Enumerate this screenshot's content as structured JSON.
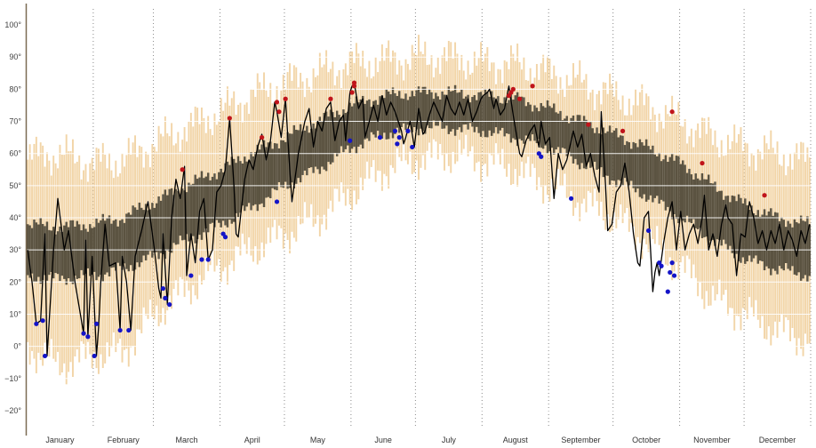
{
  "chart_data": {
    "type": "line",
    "title": "",
    "xlabel": "",
    "ylabel": "",
    "ylim": [
      -25,
      105
    ],
    "y_ticks": [
      -20,
      -10,
      0,
      10,
      20,
      30,
      40,
      50,
      60,
      70,
      80,
      90,
      100
    ],
    "y_tick_labels": [
      "−20°",
      "−10°",
      "0°",
      "10°",
      "20°",
      "30°",
      "40°",
      "50°",
      "60°",
      "70°",
      "80°",
      "90°",
      "100°"
    ],
    "months": [
      "January",
      "February",
      "March",
      "April",
      "May",
      "June",
      "July",
      "August",
      "September",
      "October",
      "November",
      "December"
    ],
    "month_start_days": [
      1,
      32,
      60,
      91,
      121,
      152,
      182,
      213,
      244,
      274,
      305,
      335
    ],
    "days_in_year": 365,
    "grid": "horizontal white lines at each 10°; dotted vertical lines at month boundaries",
    "colors": {
      "record_range": "#f2d5a8",
      "normal_range": "#5b5341",
      "actual_line": "#000000",
      "record_high_marker": "#c0141b",
      "record_low_marker": "#1414c8",
      "axis": "#7a6a52",
      "month_divider": "#888888"
    },
    "series": [
      {
        "key": "record_range",
        "kind": "band",
        "anchors": [
          [
            1,
            0,
            59
          ],
          [
            15,
            -6,
            60
          ],
          [
            31,
            -3,
            57
          ],
          [
            45,
            -2,
            58
          ],
          [
            60,
            10,
            63
          ],
          [
            75,
            18,
            68
          ],
          [
            91,
            25,
            73
          ],
          [
            105,
            30,
            78
          ],
          [
            121,
            35,
            82
          ],
          [
            136,
            40,
            85
          ],
          [
            152,
            48,
            88
          ],
          [
            167,
            55,
            89
          ],
          [
            182,
            58,
            90
          ],
          [
            197,
            60,
            90
          ],
          [
            213,
            58,
            88
          ],
          [
            228,
            55,
            88
          ],
          [
            244,
            50,
            85
          ],
          [
            259,
            45,
            82
          ],
          [
            274,
            40,
            78
          ],
          [
            289,
            33,
            75
          ],
          [
            305,
            25,
            70
          ],
          [
            320,
            15,
            65
          ],
          [
            335,
            10,
            62
          ],
          [
            350,
            5,
            60
          ],
          [
            365,
            2,
            58
          ]
        ]
      },
      {
        "key": "normal_range",
        "kind": "band",
        "anchors": [
          [
            1,
            22,
            38
          ],
          [
            15,
            21,
            37
          ],
          [
            31,
            22,
            38
          ],
          [
            45,
            24,
            40
          ],
          [
            60,
            28,
            45
          ],
          [
            75,
            33,
            50
          ],
          [
            91,
            38,
            55
          ],
          [
            105,
            43,
            60
          ],
          [
            121,
            50,
            65
          ],
          [
            136,
            55,
            70
          ],
          [
            152,
            62,
            75
          ],
          [
            167,
            66,
            78
          ],
          [
            182,
            68,
            79
          ],
          [
            197,
            68,
            79
          ],
          [
            213,
            67,
            78
          ],
          [
            228,
            65,
            77
          ],
          [
            244,
            62,
            74
          ],
          [
            259,
            57,
            70
          ],
          [
            274,
            52,
            66
          ],
          [
            289,
            47,
            62
          ],
          [
            305,
            40,
            57
          ],
          [
            320,
            33,
            50
          ],
          [
            335,
            27,
            44
          ],
          [
            350,
            24,
            40
          ],
          [
            365,
            22,
            38
          ]
        ]
      },
      {
        "key": "actual",
        "kind": "line",
        "anchors": [
          [
            1,
            30
          ],
          [
            3,
            20
          ],
          [
            5,
            7
          ],
          [
            7,
            8
          ],
          [
            9,
            35
          ],
          [
            10,
            -3
          ],
          [
            13,
            30
          ],
          [
            15,
            46
          ],
          [
            18,
            30
          ],
          [
            20,
            36
          ],
          [
            23,
            20
          ],
          [
            25,
            12
          ],
          [
            27,
            4
          ],
          [
            28,
            33
          ],
          [
            29,
            3
          ],
          [
            31,
            28
          ],
          [
            33,
            -3
          ],
          [
            34,
            6
          ],
          [
            35,
            20
          ],
          [
            37,
            38
          ],
          [
            39,
            25
          ],
          [
            42,
            26
          ],
          [
            44,
            5
          ],
          [
            45,
            28
          ],
          [
            47,
            20
          ],
          [
            49,
            5
          ],
          [
            51,
            28
          ],
          [
            54,
            36
          ],
          [
            57,
            45
          ],
          [
            60,
            30
          ],
          [
            62,
            18
          ],
          [
            63,
            15
          ],
          [
            64,
            35
          ],
          [
            66,
            13
          ],
          [
            68,
            40
          ],
          [
            70,
            52
          ],
          [
            72,
            46
          ],
          [
            74,
            56
          ],
          [
            75,
            22
          ],
          [
            77,
            35
          ],
          [
            79,
            26
          ],
          [
            81,
            42
          ],
          [
            83,
            46
          ],
          [
            85,
            27
          ],
          [
            87,
            30
          ],
          [
            89,
            48
          ],
          [
            91,
            50
          ],
          [
            93,
            55
          ],
          [
            95,
            71
          ],
          [
            97,
            50
          ],
          [
            98,
            35
          ],
          [
            99,
            34
          ],
          [
            102,
            52
          ],
          [
            104,
            58
          ],
          [
            106,
            55
          ],
          [
            108,
            62
          ],
          [
            110,
            66
          ],
          [
            112,
            58
          ],
          [
            114,
            64
          ],
          [
            116,
            76
          ],
          [
            117,
            73
          ],
          [
            119,
            65
          ],
          [
            121,
            77
          ],
          [
            123,
            55
          ],
          [
            124,
            45
          ],
          [
            127,
            60
          ],
          [
            130,
            70
          ],
          [
            132,
            74
          ],
          [
            134,
            62
          ],
          [
            136,
            70
          ],
          [
            138,
            67
          ],
          [
            140,
            74
          ],
          [
            142,
            76
          ],
          [
            144,
            64
          ],
          [
            146,
            70
          ],
          [
            148,
            72
          ],
          [
            149,
            64
          ],
          [
            151,
            79
          ],
          [
            152,
            81
          ],
          [
            153,
            82
          ],
          [
            155,
            74
          ],
          [
            157,
            77
          ],
          [
            158,
            65
          ],
          [
            160,
            70
          ],
          [
            162,
            75
          ],
          [
            164,
            70
          ],
          [
            166,
            78
          ],
          [
            168,
            72
          ],
          [
            170,
            76
          ],
          [
            172,
            73
          ],
          [
            175,
            67
          ],
          [
            176,
            63
          ],
          [
            177,
            65
          ],
          [
            179,
            70
          ],
          [
            181,
            62
          ],
          [
            183,
            74
          ],
          [
            185,
            66
          ],
          [
            186,
            67
          ],
          [
            188,
            72
          ],
          [
            190,
            76
          ],
          [
            192,
            73
          ],
          [
            194,
            70
          ],
          [
            196,
            78
          ],
          [
            198,
            74
          ],
          [
            200,
            72
          ],
          [
            202,
            76
          ],
          [
            204,
            72
          ],
          [
            206,
            77
          ],
          [
            208,
            70
          ],
          [
            210,
            73
          ],
          [
            212,
            77
          ],
          [
            213,
            78
          ],
          [
            215,
            79
          ],
          [
            216,
            80
          ],
          [
            218,
            74
          ],
          [
            219,
            77
          ],
          [
            221,
            72
          ],
          [
            223,
            74
          ],
          [
            225,
            81
          ],
          [
            227,
            72
          ],
          [
            228,
            68
          ],
          [
            230,
            60
          ],
          [
            231,
            59
          ],
          [
            233,
            64
          ],
          [
            235,
            67
          ],
          [
            237,
            69
          ],
          [
            239,
            62
          ],
          [
            240,
            70
          ],
          [
            242,
            63
          ],
          [
            244,
            65
          ],
          [
            246,
            46
          ],
          [
            248,
            60
          ],
          [
            250,
            55
          ],
          [
            252,
            58
          ],
          [
            255,
            67
          ],
          [
            257,
            62
          ],
          [
            259,
            66
          ],
          [
            261,
            56
          ],
          [
            263,
            60
          ],
          [
            265,
            53
          ],
          [
            267,
            48
          ],
          [
            268,
            73
          ],
          [
            270,
            50
          ],
          [
            271,
            36
          ],
          [
            273,
            38
          ],
          [
            275,
            48
          ],
          [
            277,
            50
          ],
          [
            279,
            57
          ],
          [
            281,
            48
          ],
          [
            283,
            35
          ],
          [
            285,
            26
          ],
          [
            286,
            25
          ],
          [
            288,
            40
          ],
          [
            290,
            42
          ],
          [
            292,
            17
          ],
          [
            293,
            23
          ],
          [
            294,
            26
          ],
          [
            295,
            22
          ],
          [
            297,
            32
          ],
          [
            299,
            40
          ],
          [
            301,
            45
          ],
          [
            303,
            30
          ],
          [
            305,
            42
          ],
          [
            307,
            30
          ],
          [
            309,
            35
          ],
          [
            311,
            38
          ],
          [
            313,
            32
          ],
          [
            315,
            40
          ],
          [
            316,
            47
          ],
          [
            318,
            30
          ],
          [
            320,
            35
          ],
          [
            322,
            28
          ],
          [
            324,
            38
          ],
          [
            326,
            44
          ],
          [
            327,
            40
          ],
          [
            329,
            38
          ],
          [
            331,
            22
          ],
          [
            333,
            35
          ],
          [
            335,
            34
          ],
          [
            337,
            45
          ],
          [
            339,
            40
          ],
          [
            341,
            32
          ],
          [
            343,
            36
          ],
          [
            345,
            30
          ],
          [
            347,
            36
          ],
          [
            349,
            32
          ],
          [
            351,
            38
          ],
          [
            353,
            30
          ],
          [
            355,
            36
          ],
          [
            357,
            33
          ],
          [
            359,
            28
          ],
          [
            361,
            36
          ],
          [
            363,
            32
          ],
          [
            365,
            38
          ]
        ]
      },
      {
        "key": "record_highs",
        "kind": "points",
        "points": [
          [
            73,
            55
          ],
          [
            95,
            71
          ],
          [
            110,
            65
          ],
          [
            117,
            76
          ],
          [
            118,
            73
          ],
          [
            121,
            77
          ],
          [
            142,
            77
          ],
          [
            152,
            79
          ],
          [
            153,
            81
          ],
          [
            153,
            82
          ],
          [
            225,
            78
          ],
          [
            226,
            79
          ],
          [
            227,
            80
          ],
          [
            230,
            77
          ],
          [
            236,
            81
          ],
          [
            262,
            69
          ],
          [
            278,
            67
          ],
          [
            301,
            73
          ],
          [
            315,
            57
          ],
          [
            344,
            47
          ]
        ]
      },
      {
        "key": "record_lows",
        "kind": "points",
        "points": [
          [
            5,
            7
          ],
          [
            8,
            8
          ],
          [
            9,
            -3
          ],
          [
            27,
            4
          ],
          [
            29,
            3
          ],
          [
            32,
            -3
          ],
          [
            33,
            7
          ],
          [
            44,
            5
          ],
          [
            48,
            5
          ],
          [
            64,
            18
          ],
          [
            65,
            15
          ],
          [
            67,
            13
          ],
          [
            77,
            22
          ],
          [
            82,
            27
          ],
          [
            85,
            27
          ],
          [
            92,
            35
          ],
          [
            93,
            34
          ],
          [
            117,
            45
          ],
          [
            151,
            64
          ],
          [
            165,
            65
          ],
          [
            172,
            67
          ],
          [
            173,
            63
          ],
          [
            174,
            65
          ],
          [
            178,
            67
          ],
          [
            180,
            62
          ],
          [
            239,
            60
          ],
          [
            240,
            59
          ],
          [
            254,
            46
          ],
          [
            290,
            36
          ],
          [
            295,
            26
          ],
          [
            296,
            25
          ],
          [
            299,
            17
          ],
          [
            300,
            23
          ],
          [
            301,
            26
          ],
          [
            302,
            22
          ]
        ]
      }
    ]
  }
}
